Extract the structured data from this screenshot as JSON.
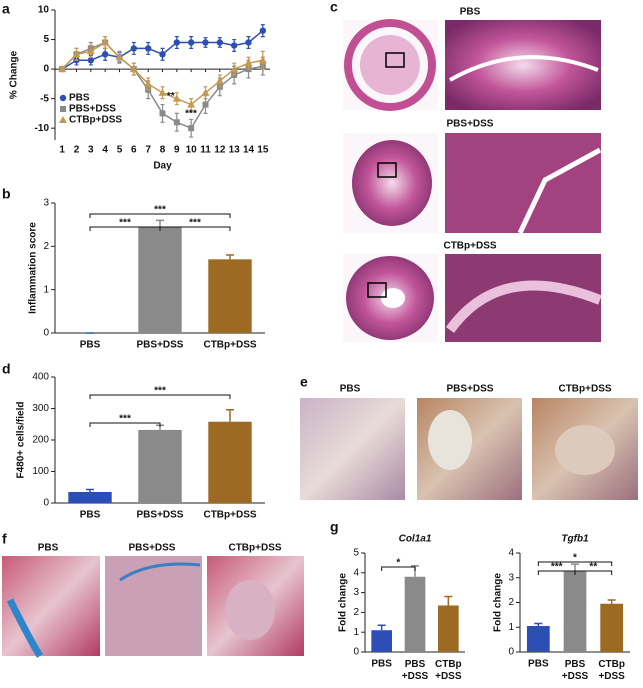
{
  "figure": {
    "panel_labels": [
      "a",
      "b",
      "c",
      "d",
      "e",
      "f",
      "g"
    ],
    "c_labels": [
      "PBS",
      "PBS+DSS",
      "CTBp+DSS"
    ],
    "e_labels": [
      "PBS",
      "PBS+DSS",
      "CTBp+DSS"
    ],
    "f_labels": [
      "PBS",
      "PBS+DSS",
      "CTBp+DSS"
    ]
  },
  "chart_data": [
    {
      "type": "line",
      "xlabel": "Day",
      "ylabel": "% Change",
      "x": [
        1,
        2,
        3,
        4,
        5,
        6,
        7,
        8,
        9,
        10,
        11,
        12,
        13,
        14,
        15
      ],
      "xlim": [
        0.5,
        15.5
      ],
      "xticks": [
        1,
        2,
        3,
        4,
        5,
        6,
        7,
        8,
        9,
        10,
        11,
        12,
        13,
        14,
        15
      ],
      "ylim": [
        -12,
        10
      ],
      "yticks": [
        -10,
        -5,
        0,
        5,
        10
      ],
      "series": [
        {
          "name": "PBS",
          "color": "#2d4fb5",
          "marker": "circle",
          "values": [
            0,
            1.5,
            1.5,
            2.5,
            2,
            3.5,
            3.5,
            2.5,
            4.5,
            4.5,
            4.5,
            4.5,
            4,
            4.5,
            6.5
          ],
          "errors": [
            0.3,
            0.8,
            0.8,
            1,
            0.8,
            1,
            1,
            1,
            1,
            1,
            0.8,
            0.8,
            1,
            1,
            1
          ]
        },
        {
          "name": "PBS+DSS",
          "color": "#8a8a8a",
          "marker": "square",
          "values": [
            0,
            2.5,
            3.5,
            4.5,
            2,
            0,
            -3.5,
            -7.5,
            -9,
            -10,
            -6,
            -3,
            -1,
            0,
            0.5
          ],
          "errors": [
            0.3,
            1,
            1,
            1,
            1,
            1,
            1.5,
            1.5,
            1.5,
            1.5,
            1.5,
            1.5,
            1.5,
            1.5,
            1.5
          ]
        },
        {
          "name": "CTBp+DSS",
          "color": "#c49a52",
          "marker": "triangle",
          "values": [
            0,
            2.5,
            3,
            4.5,
            2,
            0,
            -2.5,
            -4,
            -5,
            -6,
            -4,
            -2,
            0,
            1,
            1.5
          ],
          "errors": [
            0.3,
            1,
            1,
            1,
            1,
            1,
            1,
            1,
            1,
            1,
            1,
            1,
            1,
            1,
            1.5
          ]
        }
      ],
      "annotations": [
        "**",
        "***"
      ],
      "legend": "lower left",
      "grid": false
    },
    {
      "type": "bar",
      "ylabel": "Inflammation score",
      "categories": [
        "PBS",
        "PBS+DSS",
        "CTBp+DSS"
      ],
      "values": [
        0,
        2.45,
        1.7
      ],
      "errors": [
        0,
        0.15,
        0.1
      ],
      "colors": [
        "#2d4fb5",
        "#8a8a8a",
        "#9c6a22"
      ],
      "ylim": [
        0,
        3
      ],
      "yticks": [
        0,
        1,
        2,
        3
      ],
      "annotations": [
        "***",
        "***",
        "***"
      ]
    },
    {
      "type": "bar",
      "ylabel": "F480+ cells/field",
      "categories": [
        "PBS",
        "PBS+DSS",
        "CTBp+DSS"
      ],
      "values": [
        35,
        232,
        258
      ],
      "errors": [
        8,
        15,
        38
      ],
      "colors": [
        "#2d4fb5",
        "#8a8a8a",
        "#9c6a22"
      ],
      "ylim": [
        0,
        400
      ],
      "yticks": [
        0,
        100,
        200,
        300,
        400
      ],
      "annotations": [
        "***",
        "***"
      ]
    },
    {
      "type": "bar",
      "title": "Col1a1",
      "ylabel": "Fold change",
      "categories": [
        "PBS",
        "PBS\n+DSS",
        "CTBp\n+DSS"
      ],
      "values": [
        1.1,
        3.8,
        2.35
      ],
      "errors": [
        0.25,
        0.55,
        0.45
      ],
      "colors": [
        "#2d4fb5",
        "#8a8a8a",
        "#9c6a22"
      ],
      "ylim": [
        0,
        5
      ],
      "yticks": [
        0,
        1,
        2,
        3,
        4,
        5
      ],
      "annotations": [
        "*"
      ]
    },
    {
      "type": "bar",
      "title": "Tgfb1",
      "ylabel": "Fold change",
      "categories": [
        "PBS",
        "PBS\n+DSS",
        "CTBp\n+DSS"
      ],
      "values": [
        1.05,
        3.25,
        1.95
      ],
      "errors": [
        0.1,
        0.3,
        0.15
      ],
      "colors": [
        "#2d4fb5",
        "#8a8a8a",
        "#9c6a22"
      ],
      "ylim": [
        0,
        4
      ],
      "yticks": [
        0,
        1,
        2,
        3,
        4
      ],
      "annotations": [
        "***",
        "*",
        "**"
      ]
    }
  ]
}
